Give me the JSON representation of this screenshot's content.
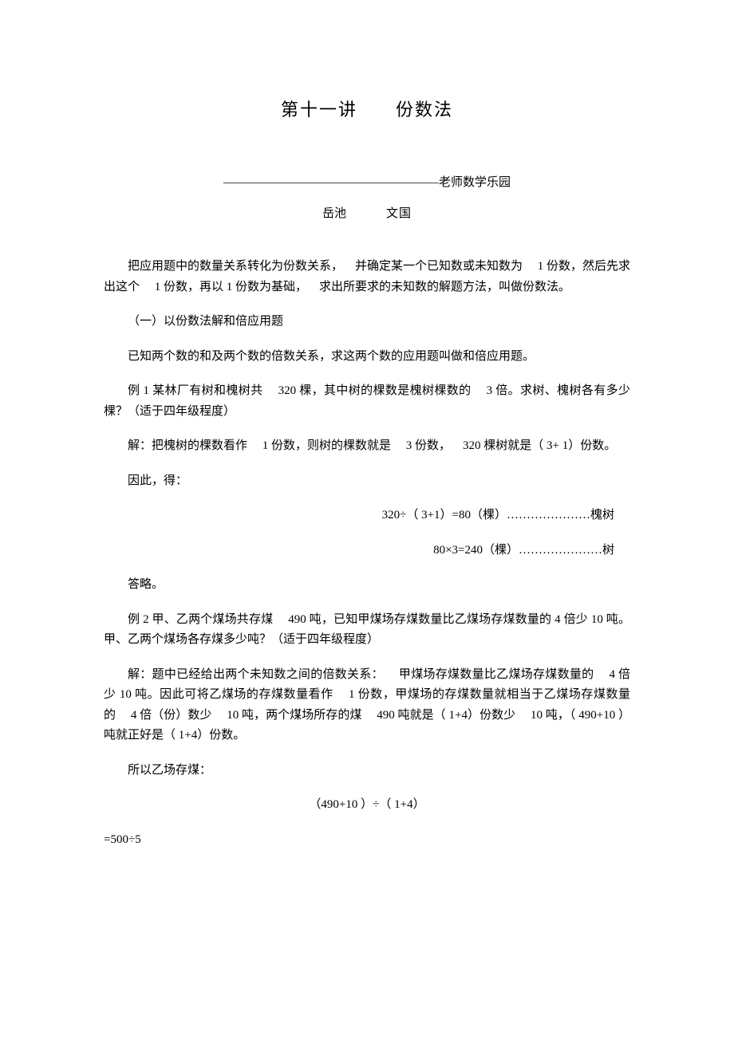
{
  "title": "第十一讲  份数法",
  "subtitle": "——————————————————老师数学乐园",
  "author_place": "岳池",
  "author_name": "文国",
  "intro": "把应用题中的数量关系转化为份数关系， 并确定某一个已知数或未知数为  1 份数，然后先求出这个  1 份数，再以 1 份数为基础， 求出所要求的未知数的解题方法，叫做份数法。",
  "section1_title": "（一）以份数法解和倍应用题",
  "section1_desc": "已知两个数的和及两个数的倍数关系，求这两个数的应用题叫做和倍应用题。",
  "ex1_problem": "例 1 某林厂有树和槐树共  320 棵，其中树的棵数是槐树棵数的  3 倍。求树、槐树各有多少棵？（适于四年级程度）",
  "ex1_sol1": "解：把槐树的棵数看作  1 份数，则树的棵数就是  3 份数， 320 棵树就是（ 3+ 1）份数。",
  "ex1_sol2": "因此，得：",
  "ex1_eq1": "320÷（ 3+1）=80（棵）…………………槐树",
  "ex1_eq2": "80×3=240（棵）…………………树",
  "ex1_answer": "答略。",
  "ex2_problem": "例 2 甲、乙两个煤场共存煤  490 吨，已知甲煤场存煤数量比乙煤场存煤数量的 4 倍少 10 吨。甲、乙两个煤场各存煤多少吨？（适于四年级程度）",
  "ex2_sol1": "解：题中已经给出两个未知数之间的倍数关系：  甲煤场存煤数量比乙煤场存煤数量的  4 倍少 10 吨。因此可将乙煤场的存煤数量看作  1 份数，甲煤场的存煤数量就相当于乙煤场存煤数量的  4 倍（份）数少  10 吨，两个煤场所存的煤  490 吨就是（ 1+4）份数少  10 吨，（ 490+10 ）吨就正好是（ 1+4）份数。",
  "ex2_sol2": "所以乙场存煤：",
  "ex2_eq1": "（490+10 ）÷（ 1+4）",
  "ex2_eq2": "=500÷5"
}
